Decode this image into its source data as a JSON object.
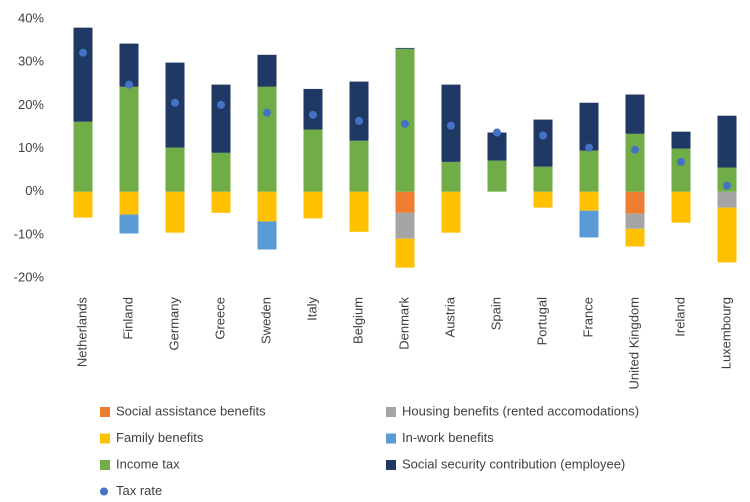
{
  "chart_data": {
    "type": "bar",
    "stacked": true,
    "categories": [
      "Netherlands",
      "Finland",
      "Germany",
      "Greece",
      "Sweden",
      "Italy",
      "Belgium",
      "Denmark",
      "Austria",
      "Spain",
      "Portugal",
      "France",
      "United Kingdom",
      "Ireland",
      "Luxembourg"
    ],
    "series": [
      {
        "name": "Social assistance benefits",
        "color": "#ED7D31",
        "values": [
          0,
          0,
          0,
          0,
          0,
          0,
          0,
          -4.9,
          0,
          0,
          0,
          0,
          -5.1,
          0,
          0
        ]
      },
      {
        "name": "Housing benefits (rented accomodations)",
        "color": "#A5A5A5",
        "values": [
          0,
          0,
          0,
          0,
          0,
          0,
          0,
          -6.0,
          0,
          0,
          0,
          0,
          -3.5,
          0,
          -3.7
        ]
      },
      {
        "name": "Family benefits",
        "color": "#FFC000",
        "values": [
          -6.0,
          -5.3,
          -9.5,
          -4.9,
          -6.9,
          -6.2,
          -9.3,
          -6.7,
          -9.5,
          0,
          -3.7,
          -4.4,
          -4.1,
          -7.2,
          -12.7
        ]
      },
      {
        "name": "In-work benefits",
        "color": "#5B9BD5",
        "values": [
          0,
          -4.4,
          0,
          0,
          -6.5,
          0,
          0,
          0,
          0,
          0,
          0,
          -6.2,
          0,
          0,
          0
        ]
      },
      {
        "name": "Income tax",
        "color": "#70AD47",
        "values": [
          16.2,
          24.3,
          10.2,
          9.0,
          24.3,
          14.4,
          11.8,
          33.1,
          6.9,
          7.2,
          5.8,
          9.5,
          13.4,
          10.0,
          5.6
        ]
      },
      {
        "name": "Social security contribution (employee)",
        "color": "#203864",
        "values": [
          21.8,
          10.0,
          19.7,
          15.8,
          7.4,
          9.4,
          13.7,
          0.2,
          17.9,
          6.5,
          10.9,
          11.1,
          9.1,
          3.9,
          12.0
        ]
      },
      {
        "name": "Tax rate",
        "color": "#4472C4",
        "type": "scatter",
        "values": [
          32.2,
          24.8,
          20.6,
          20.1,
          18.3,
          17.8,
          16.4,
          15.7,
          15.3,
          13.7,
          13.0,
          10.2,
          9.7,
          6.9,
          1.4
        ]
      }
    ],
    "ylim": [
      -20,
      40
    ],
    "yticks": [
      {
        "value": -20,
        "label": "-20%"
      },
      {
        "value": -10,
        "label": "-10%"
      },
      {
        "value": 0,
        "label": "0%"
      },
      {
        "value": 10,
        "label": "10%"
      },
      {
        "value": 20,
        "label": "20%"
      },
      {
        "value": 30,
        "label": "30%"
      },
      {
        "value": 40,
        "label": "40%"
      }
    ]
  }
}
